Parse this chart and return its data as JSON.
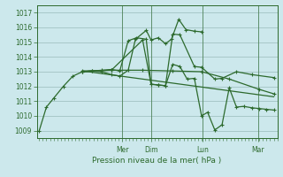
{
  "title": "Pression niveau de la mer( hPa )",
  "bg_color": "#cce8ec",
  "grid_color": "#99bbbb",
  "line_color": "#2d6a2d",
  "ylim": [
    1008.5,
    1017.5
  ],
  "yticks": [
    1009,
    1010,
    1011,
    1012,
    1013,
    1014,
    1015,
    1016,
    1017
  ],
  "xlim": [
    0,
    1.0
  ],
  "day_labels": [
    "Mer",
    "Dim",
    "Lun",
    "Mar"
  ],
  "day_positions": [
    0.355,
    0.475,
    0.69,
    0.92
  ],
  "series1_obs": {
    "x": [
      0.01,
      0.04,
      0.07,
      0.11,
      0.15,
      0.19,
      0.23,
      0.27,
      0.31,
      0.345,
      0.38,
      0.41,
      0.455,
      0.475,
      0.505,
      0.535,
      0.56,
      0.59,
      0.62,
      0.655,
      0.685
    ],
    "y": [
      1009.0,
      1010.6,
      1011.2,
      1012.0,
      1012.7,
      1013.0,
      1013.05,
      1013.0,
      1012.8,
      1012.7,
      1013.1,
      1015.2,
      1015.8,
      1015.15,
      1015.3,
      1014.9,
      1015.2,
      1016.55,
      1015.85,
      1015.75,
      1015.7
    ],
    "linestyle": "-",
    "marker": "+"
  },
  "series2": {
    "x": [
      0.19,
      0.23,
      0.27,
      0.31,
      0.345,
      0.38,
      0.415,
      0.455,
      0.475,
      0.505,
      0.535,
      0.565,
      0.595,
      0.625,
      0.655,
      0.685,
      0.71,
      0.74,
      0.77,
      0.8,
      0.83,
      0.86,
      0.895,
      0.925,
      0.955,
      0.985
    ],
    "y": [
      1013.0,
      1013.05,
      1013.1,
      1013.15,
      1013.05,
      1015.1,
      1015.3,
      1015.2,
      1012.15,
      1012.1,
      1012.05,
      1013.5,
      1013.35,
      1012.5,
      1012.55,
      1010.0,
      1010.25,
      1009.05,
      1009.4,
      1011.9,
      1010.6,
      1010.65,
      1010.55,
      1010.5,
      1010.45,
      1010.4
    ],
    "linestyle": "-",
    "marker": "+"
  },
  "series3_gradual": {
    "x": [
      0.19,
      0.31,
      0.44,
      0.565,
      0.685,
      0.8,
      0.925,
      0.985
    ],
    "y": [
      1013.05,
      1013.1,
      1013.1,
      1013.05,
      1013.0,
      1012.5,
      1011.8,
      1011.5
    ],
    "linestyle": "-",
    "marker": "+"
  },
  "series4_spiky": {
    "x": [
      0.19,
      0.31,
      0.44,
      0.475,
      0.505,
      0.535,
      0.565,
      0.595,
      0.655,
      0.685,
      0.74,
      0.77,
      0.83,
      0.895,
      0.985
    ],
    "y": [
      1013.0,
      1013.1,
      1015.15,
      1012.15,
      1012.1,
      1012.05,
      1015.55,
      1015.5,
      1013.35,
      1013.3,
      1012.5,
      1012.55,
      1013.0,
      1012.8,
      1012.6
    ],
    "linestyle": "-",
    "marker": "+"
  },
  "series5_trend": {
    "x": [
      0.19,
      0.985
    ],
    "y": [
      1013.05,
      1011.3
    ],
    "linestyle": "-",
    "marker": null
  }
}
